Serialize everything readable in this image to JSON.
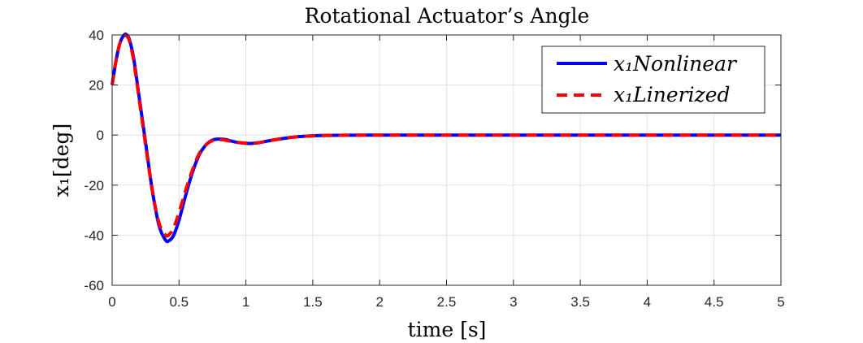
{
  "chart_data": {
    "type": "line",
    "title": "Rotational Actuator’s Angle",
    "xlabel": "time [s]",
    "ylabel": "x₁[deg]",
    "xlim": [
      0,
      5
    ],
    "ylim": [
      -60,
      40
    ],
    "grid": true,
    "legend_position": "top-right",
    "xticks": [
      "0",
      "0.5",
      "1",
      "1.5",
      "2",
      "2.5",
      "3",
      "3.5",
      "4",
      "4.5",
      "5"
    ],
    "yticks": [
      "40",
      "20",
      "0",
      "-20",
      "-40",
      "-60"
    ],
    "series": [
      {
        "name": "x₁Nonlinear",
        "color": "#0000ff",
        "style": "solid",
        "x": [
          0,
          0.03,
          0.06,
          0.09,
          0.11,
          0.13,
          0.16,
          0.2,
          0.25,
          0.3,
          0.35,
          0.4,
          0.43,
          0.46,
          0.5,
          0.55,
          0.6,
          0.65,
          0.7,
          0.75,
          0.8,
          0.85,
          0.9,
          0.95,
          1.0,
          1.05,
          1.1,
          1.15,
          1.2,
          1.3,
          1.4,
          1.5,
          1.6,
          1.8,
          2.0,
          2.5,
          3.0,
          3.5,
          4.0,
          4.5,
          5.0
        ],
        "y": [
          20,
          30,
          37,
          40,
          40,
          38,
          31,
          16,
          -3,
          -22,
          -36,
          -42,
          -42,
          -40,
          -34,
          -24,
          -15,
          -8,
          -4,
          -2,
          -1.6,
          -1.8,
          -2.5,
          -3,
          -3.3,
          -3.3,
          -3,
          -2.5,
          -2,
          -1.2,
          -0.6,
          -0.3,
          -0.15,
          -0.05,
          0,
          0,
          0,
          0,
          0,
          0,
          0
        ]
      },
      {
        "name": "x₁Linerized",
        "color": "#ff0000",
        "style": "dashed",
        "x": [
          0,
          0.03,
          0.06,
          0.09,
          0.11,
          0.13,
          0.16,
          0.2,
          0.25,
          0.3,
          0.35,
          0.4,
          0.43,
          0.46,
          0.5,
          0.55,
          0.6,
          0.65,
          0.7,
          0.75,
          0.8,
          0.85,
          0.9,
          0.95,
          1.0,
          1.05,
          1.1,
          1.15,
          1.2,
          1.3,
          1.4,
          1.5,
          1.6,
          1.8,
          2.0,
          2.5,
          3.0,
          3.5,
          4.0,
          4.5,
          5.0
        ],
        "y": [
          20,
          30,
          37,
          39.5,
          39.5,
          37.5,
          30,
          15,
          -4,
          -22,
          -35,
          -40,
          -39.5,
          -37,
          -31,
          -22,
          -14,
          -7.5,
          -4,
          -2.2,
          -1.8,
          -2.1,
          -2.6,
          -3,
          -3.2,
          -3.2,
          -3,
          -2.5,
          -2,
          -1.2,
          -0.6,
          -0.3,
          -0.15,
          -0.05,
          0,
          0,
          0,
          0,
          0,
          0,
          0
        ]
      }
    ]
  }
}
